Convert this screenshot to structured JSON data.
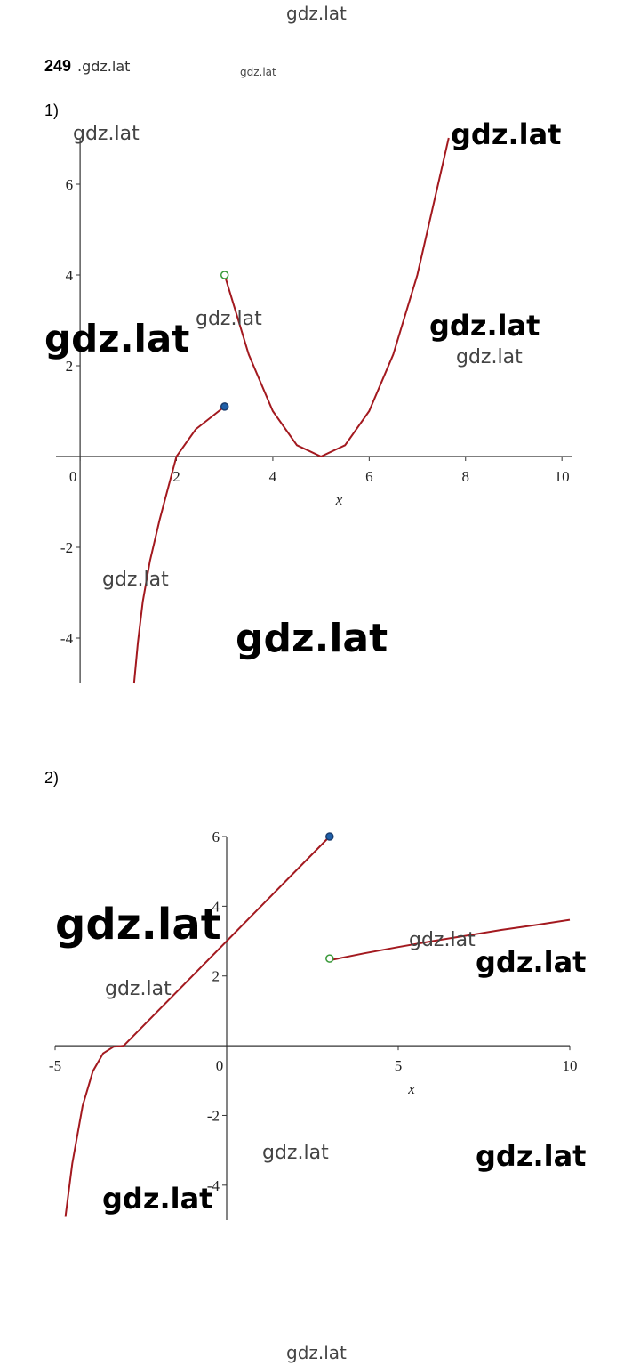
{
  "problem_number": "249",
  "problem_tail": ".gdz.lat",
  "charts": [
    {
      "part_label": "1)",
      "type": "line",
      "xlabel": "x",
      "xlim": [
        -0.5,
        10.2
      ],
      "ylim": [
        -5,
        7
      ],
      "xticks": [
        0,
        2,
        4,
        6,
        8,
        10
      ],
      "yticks": [
        -4,
        -2,
        2,
        4,
        6
      ],
      "series": [
        {
          "color": "#a3191f",
          "x": [
            1.12,
            1.2,
            1.3,
            1.45,
            1.65,
            2,
            2.4,
            3
          ],
          "values": [
            -5,
            -4.1,
            -3.2,
            -2.3,
            -1.4,
            0,
            0.6,
            1.1
          ]
        },
        {
          "color": "#a3191f",
          "x": [
            3,
            3.5,
            4,
            4.5,
            5,
            5.5,
            6,
            6.5,
            7,
            7.65
          ],
          "values": [
            4,
            2.25,
            1,
            0.25,
            0,
            0.25,
            1,
            2.25,
            4,
            7.02
          ]
        }
      ],
      "points": [
        {
          "x": 3,
          "y": 4,
          "filled": false,
          "color": "#3a9a3a"
        },
        {
          "x": 3,
          "y": 1.1,
          "filled": true,
          "color": "#1f5fa8"
        }
      ]
    },
    {
      "part_label": "2)",
      "type": "line",
      "xlabel": "x",
      "xlim": [
        -5,
        10
      ],
      "ylim": [
        -5,
        6
      ],
      "xticks": [
        -5,
        0,
        5,
        10
      ],
      "yticks": [
        -4,
        -2,
        2,
        4,
        6
      ],
      "series": [
        {
          "color": "#a3191f",
          "x": [
            -4.7,
            -4.5,
            -4.2,
            -3.9,
            -3.6,
            -3.3,
            -3
          ],
          "values": [
            -4.91,
            -3.38,
            -1.73,
            -0.73,
            -0.22,
            -0.03,
            0
          ]
        },
        {
          "color": "#a3191f",
          "x": [
            -3,
            3
          ],
          "values": [
            0,
            6
          ]
        },
        {
          "color": "#a3191f",
          "x": [
            3,
            4,
            5,
            6,
            7,
            8,
            9,
            10
          ],
          "values": [
            2.45,
            2.65,
            2.83,
            3,
            3.16,
            3.32,
            3.46,
            3.61
          ]
        }
      ],
      "points": [
        {
          "x": 3,
          "y": 6,
          "filled": true,
          "color": "#1f5fa8"
        },
        {
          "x": 3,
          "y": 2.5,
          "filled": false,
          "color": "#3a9a3a"
        }
      ]
    }
  ],
  "watermarks": [
    "gdz.lat",
    "gdz.lat",
    "gdz.lat",
    "gdz.lat",
    "gdz.lat",
    "gdz.lat",
    "gdz.lat",
    "gdz.lat",
    "gdz.lat",
    "gdz.lat",
    "gdz.lat",
    "gdz.lat",
    "gdz.lat",
    "gdz.lat",
    "gdz.lat",
    "gdz.lat",
    "gdz.lat",
    "gdz.lat"
  ]
}
